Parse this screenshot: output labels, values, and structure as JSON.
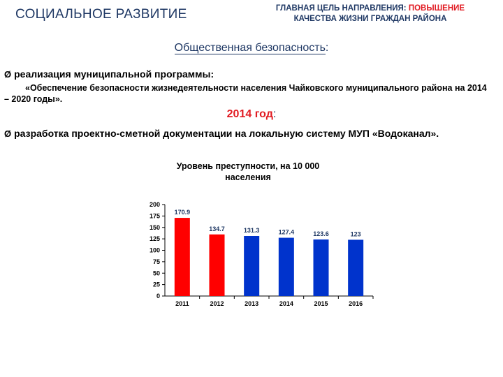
{
  "header": {
    "section_title": "СОЦИАЛЬНОЕ РАЗВИТИЕ",
    "goal_prefix": "ГЛАВНАЯ ЦЕЛЬ НАПРАВЛЕНИЯ: ",
    "goal_accent": "ПОВЫШЕНИЕ",
    "goal_line2": "КАЧЕСТВА ЖИЗНИ ГРАЖДАН РАЙОНА"
  },
  "content": {
    "subtitle": "Общественная безопасность",
    "subtitle_colon": ":",
    "bullet1": "реализация муниципальной программы:",
    "quote": "«Обеспечение безопасности жизнедеятельности населения Чайковского муниципального района на 2014 – 2020 годы».",
    "year_heading": "2014 год",
    "year_colon": ":",
    "bullet2": "разработка проектно-сметной документации на локальную систему МУП «Водоканал».",
    "arrow_glyph": "Ø"
  },
  "chart_data": {
    "type": "bar",
    "title": "Уровень преступности, на 10 000 населения",
    "categories": [
      "2011",
      "2012",
      "2013",
      "2014",
      "2015",
      "2016"
    ],
    "values": [
      170.9,
      134.7,
      131.3,
      127.4,
      123.6,
      123
    ],
    "data_labels": [
      "170.9",
      "134.7",
      "131.3",
      "127.4",
      "123.6",
      "123"
    ],
    "bar_colors": [
      "#ff0000",
      "#ff0000",
      "#0033cc",
      "#0033cc",
      "#0033cc",
      "#0033cc"
    ],
    "ylim": [
      0,
      200
    ],
    "yticks": [
      0,
      25,
      50,
      75,
      100,
      125,
      150,
      175,
      200
    ],
    "grid": false,
    "legend": "none"
  }
}
